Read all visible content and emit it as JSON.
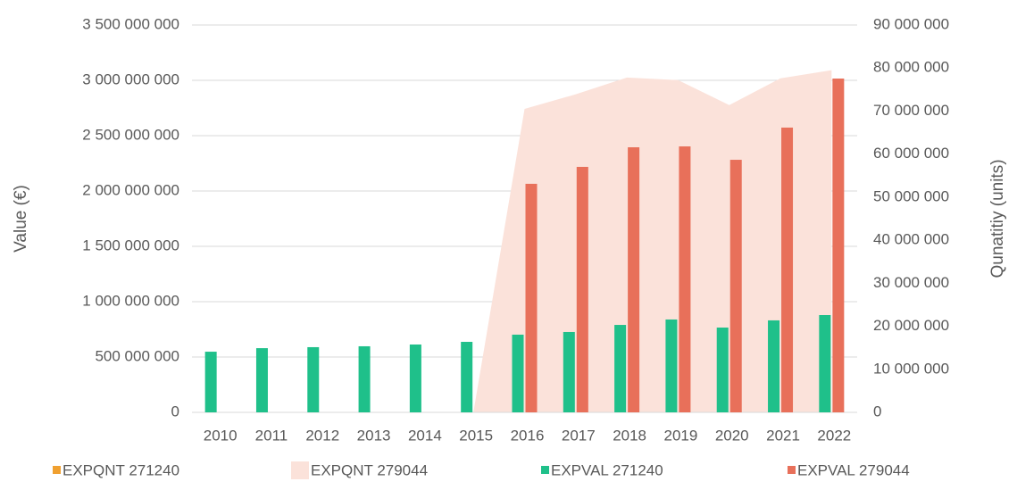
{
  "chart_data": {
    "type": "bar",
    "categories": [
      "2010",
      "2011",
      "2012",
      "2013",
      "2014",
      "2015",
      "2016",
      "2017",
      "2018",
      "2019",
      "2020",
      "2021",
      "2022"
    ],
    "y_label": "Value (€)",
    "y2_label": "Qunatitiy (units)",
    "ylim": [
      0,
      3500000000
    ],
    "yticks": [
      0,
      {
        "value": 500000000,
        "label": "500 000 000"
      },
      {
        "value": 1000000000,
        "label": "1 000 000 000"
      },
      {
        "value": 1500000000,
        "label": "1 500 000 000"
      },
      {
        "value": 2000000000,
        "label": "2 000 000 000"
      },
      {
        "value": 2500000000,
        "label": "2 500 000 000"
      },
      {
        "value": 3000000000,
        "label": "3 000 000 000"
      },
      {
        "value": 3500000000,
        "label": "3 500 000 000"
      }
    ],
    "y2lim": [
      0,
      90000000
    ],
    "y2ticks": [
      0,
      {
        "value": 10000000,
        "label": "10 000 000"
      },
      {
        "value": 20000000,
        "label": "20 000 000"
      },
      {
        "value": 30000000,
        "label": "30 000 000"
      },
      {
        "value": 40000000,
        "label": "40 000 000"
      },
      {
        "value": 50000000,
        "label": "50 000 000"
      },
      {
        "value": 60000000,
        "label": "60 000 000"
      },
      {
        "value": 70000000,
        "label": "70 000 000"
      },
      {
        "value": 80000000,
        "label": "80 000 000"
      },
      {
        "value": 90000000,
        "label": "90 000 000"
      }
    ],
    "grid": true,
    "legend": "bottom",
    "series": [
      {
        "name": "EXPQNT 271240",
        "color": "#f0a030",
        "kind": "bar",
        "axis": "y2",
        "values": [
          null,
          null,
          null,
          null,
          null,
          null,
          null,
          null,
          null,
          null,
          null,
          null,
          null
        ]
      },
      {
        "name": "EXPQNT 279044",
        "color": "#fbe2da",
        "kind": "area",
        "axis": "y2",
        "values": [
          0,
          0,
          0,
          0,
          0,
          0,
          70500000,
          73900000,
          77800000,
          77200000,
          71400000,
          77600000,
          79500000
        ]
      },
      {
        "name": "EXPVAL  271240",
        "color": "#1fc08a",
        "kind": "bar",
        "values": [
          548000000,
          580000000,
          589000000,
          597000000,
          613000000,
          637000000,
          702000000,
          726000000,
          790000000,
          839000000,
          766000000,
          831000000,
          879000000
        ]
      },
      {
        "name": "EXPVAL  279044",
        "color": "#e8705a",
        "kind": "bar",
        "values": [
          null,
          null,
          null,
          null,
          null,
          null,
          2065000000,
          2218000000,
          2395000000,
          2403000000,
          2282000000,
          2573000000,
          3016000000
        ]
      }
    ]
  }
}
